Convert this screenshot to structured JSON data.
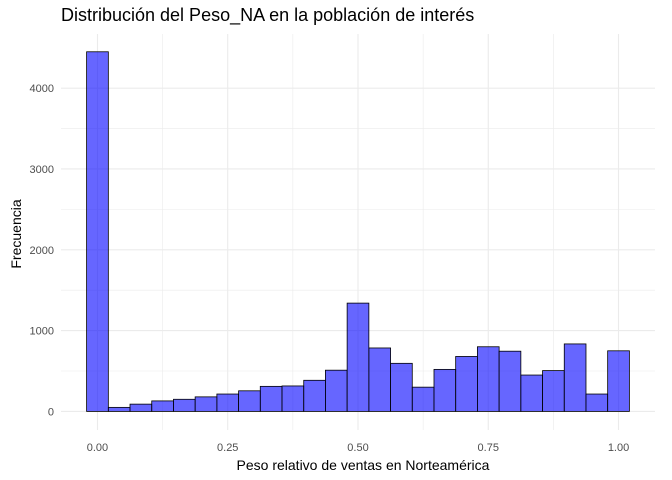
{
  "chart_data": {
    "type": "bar",
    "title": "Distribución del Peso_NA en la población de interés",
    "xlabel": "Peso relativo de ventas en Norteamérica",
    "ylabel": "Frecuencia",
    "bin_width": 0.0417,
    "x_centers": [
      0.0,
      0.0417,
      0.0833,
      0.125,
      0.1667,
      0.2083,
      0.25,
      0.2917,
      0.3333,
      0.375,
      0.4167,
      0.4583,
      0.5,
      0.5417,
      0.5833,
      0.625,
      0.6667,
      0.7083,
      0.75,
      0.7917,
      0.8333,
      0.875,
      0.9167,
      0.9583,
      1.0
    ],
    "values": [
      4450,
      50,
      90,
      130,
      150,
      180,
      215,
      255,
      310,
      315,
      385,
      510,
      1340,
      785,
      595,
      300,
      520,
      680,
      800,
      745,
      450,
      505,
      835,
      215,
      750
    ],
    "xlim": [
      -0.07,
      1.07
    ],
    "ylim": [
      -230,
      4670
    ],
    "x_ticks": [
      0.0,
      0.25,
      0.5,
      0.75,
      1.0
    ],
    "x_tick_labels": [
      "0.00",
      "0.25",
      "0.50",
      "0.75",
      "1.00"
    ],
    "y_ticks": [
      0,
      1000,
      2000,
      3000,
      4000
    ],
    "y_tick_labels": [
      "0",
      "1000",
      "2000",
      "3000",
      "4000"
    ],
    "grid": true,
    "bar_fill": "#0000ff",
    "bar_opacity": 0.6,
    "bar_stroke": "#000000",
    "grid_color": "#ebebeb"
  }
}
